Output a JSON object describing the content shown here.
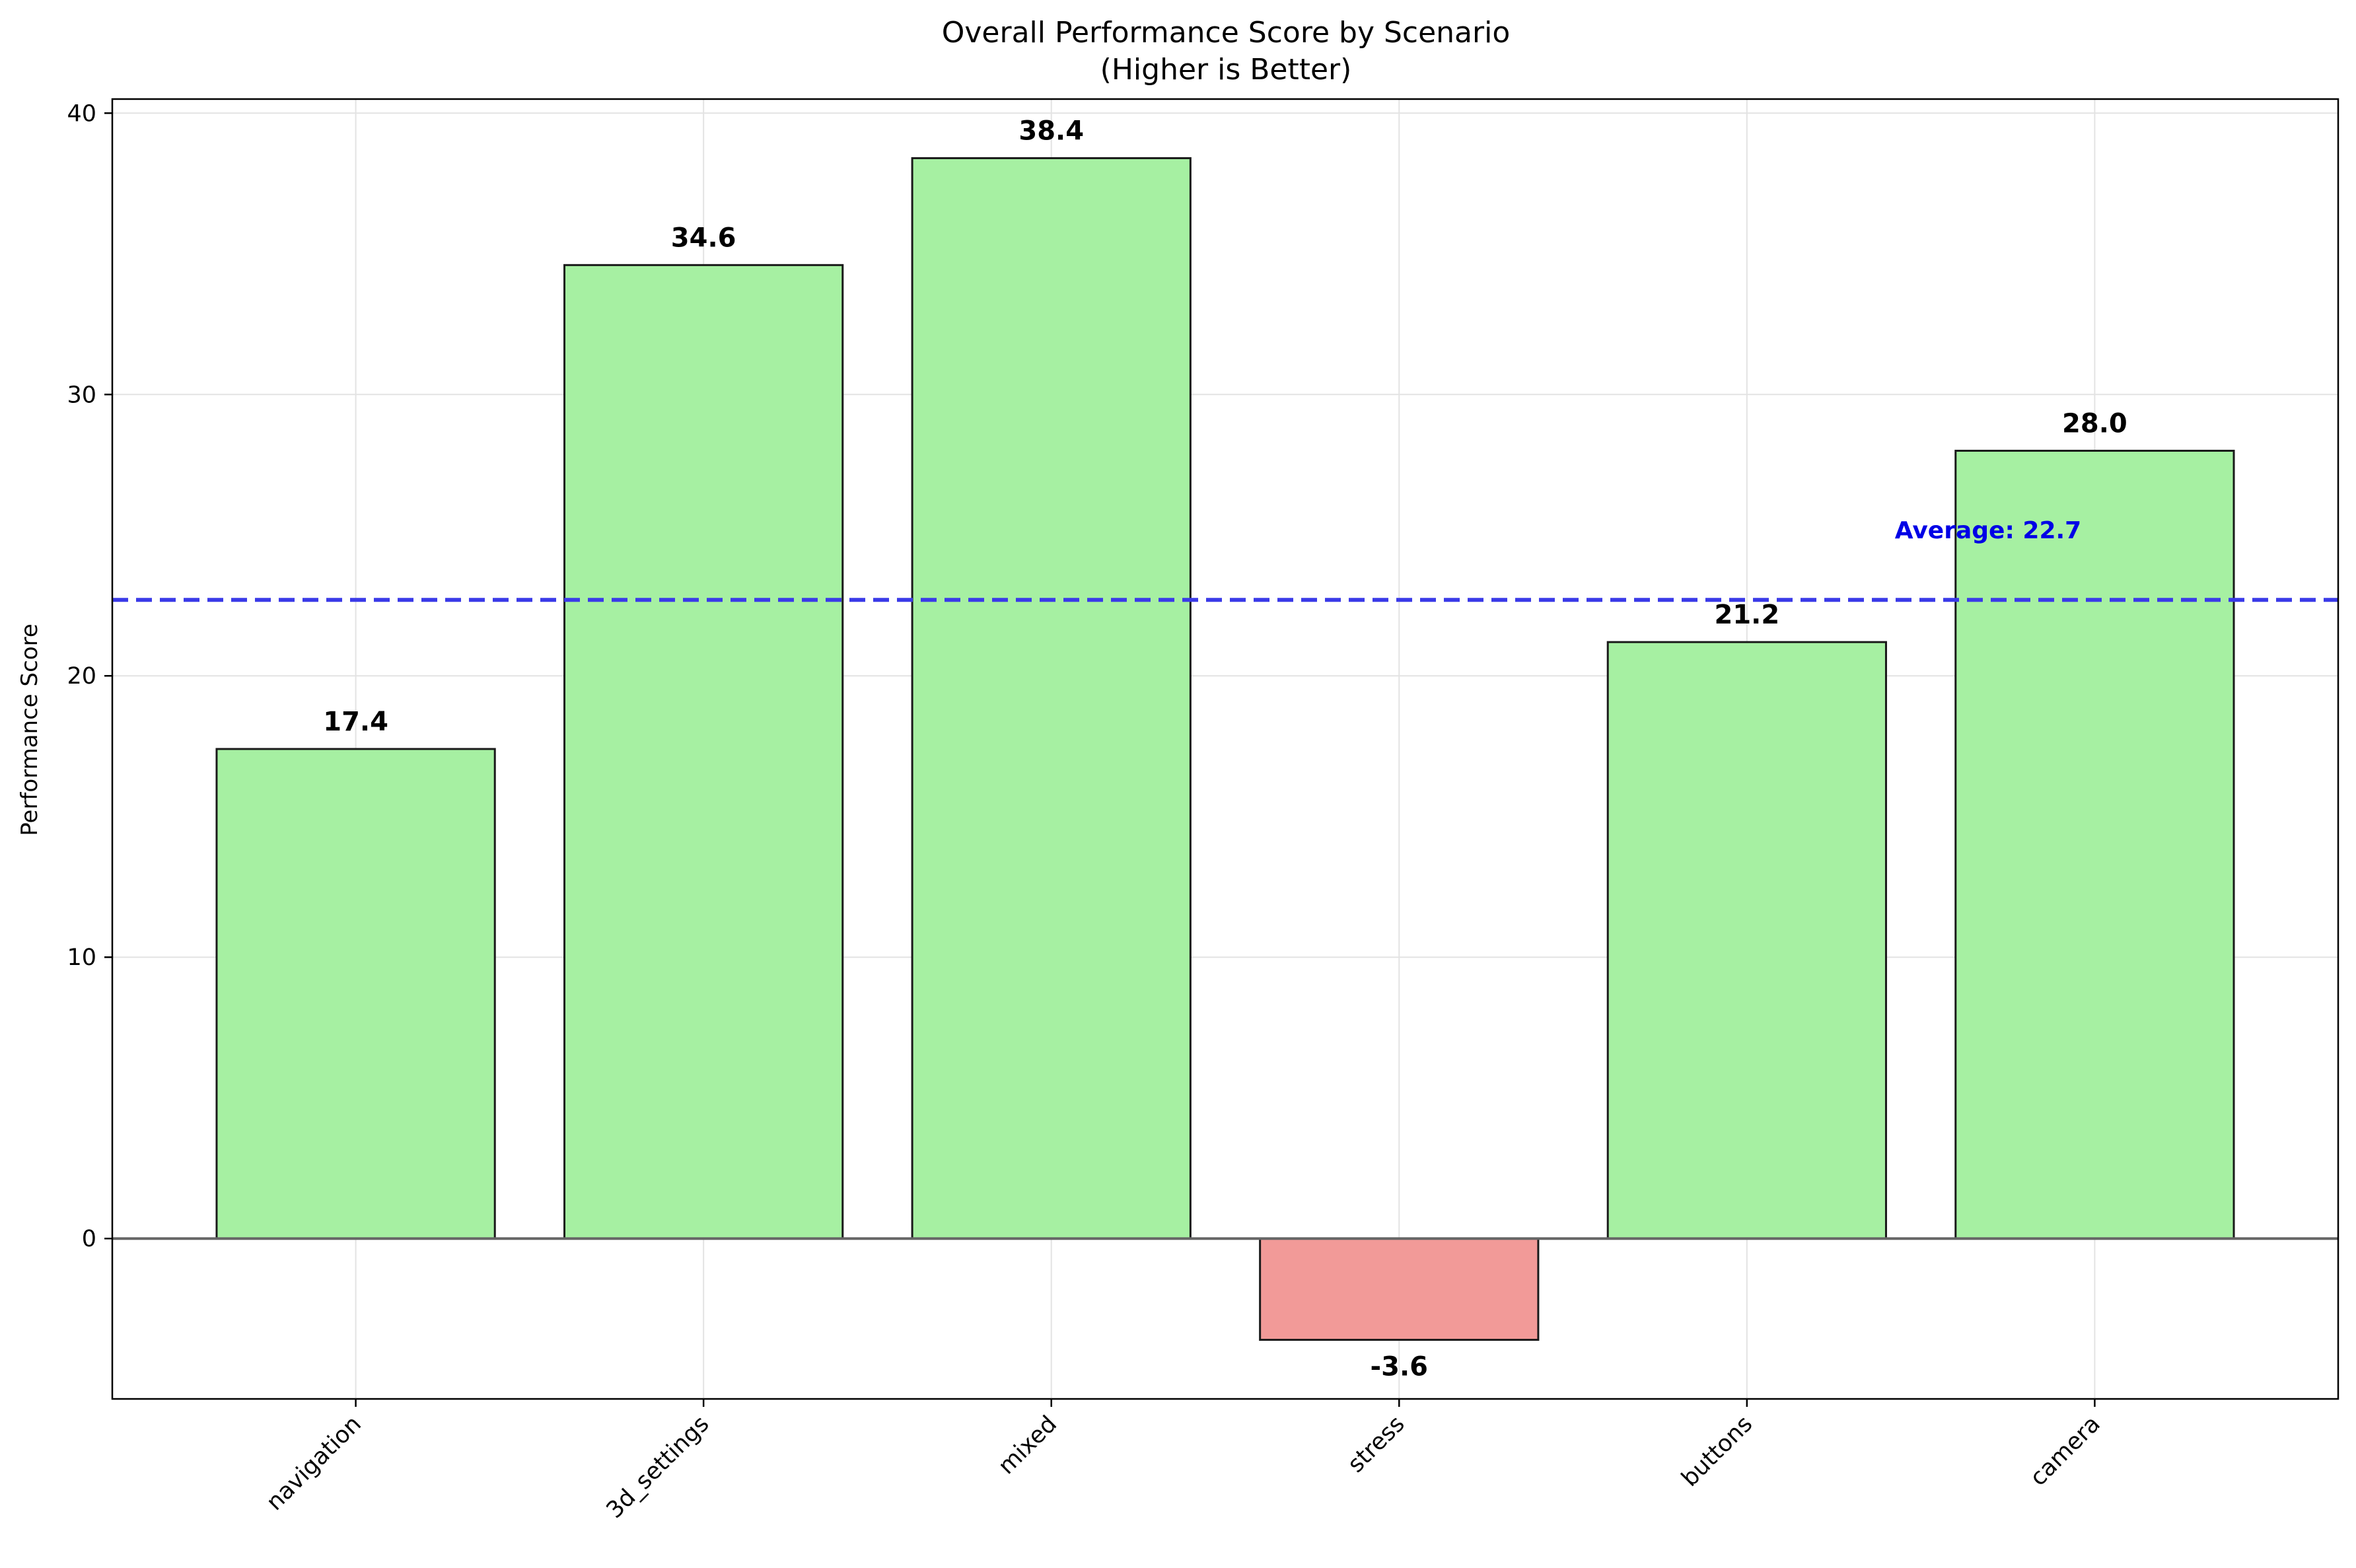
{
  "chart_data": {
    "type": "bar",
    "title": "Overall Performance Score by Scenario",
    "subtitle": "(Higher is Better)",
    "xlabel": "",
    "ylabel": "Performance Score",
    "categories": [
      "navigation",
      "3d_settings",
      "mixed",
      "stress",
      "buttons",
      "camera"
    ],
    "values": [
      17.4,
      34.6,
      38.4,
      -3.6,
      21.2,
      28.0
    ],
    "value_labels": [
      "17.4",
      "34.6",
      "38.4",
      "-3.6",
      "21.2",
      "28.0"
    ],
    "ylim": [
      -5.7,
      40.5
    ],
    "yticks": [
      0,
      10,
      20,
      30,
      40
    ],
    "ytick_labels": [
      "0",
      "10",
      "20",
      "30",
      "40"
    ],
    "grid": true,
    "average": 22.7,
    "average_label": "Average: 22.7",
    "colors": {
      "positive": "#a6f0a2",
      "negative": "#f29a98",
      "edge": "#1a1a1a",
      "average_line": "#3a3ae8",
      "average_text": "#0000e6",
      "zero_line": "#666666",
      "grid": "#e3e3e3"
    }
  }
}
